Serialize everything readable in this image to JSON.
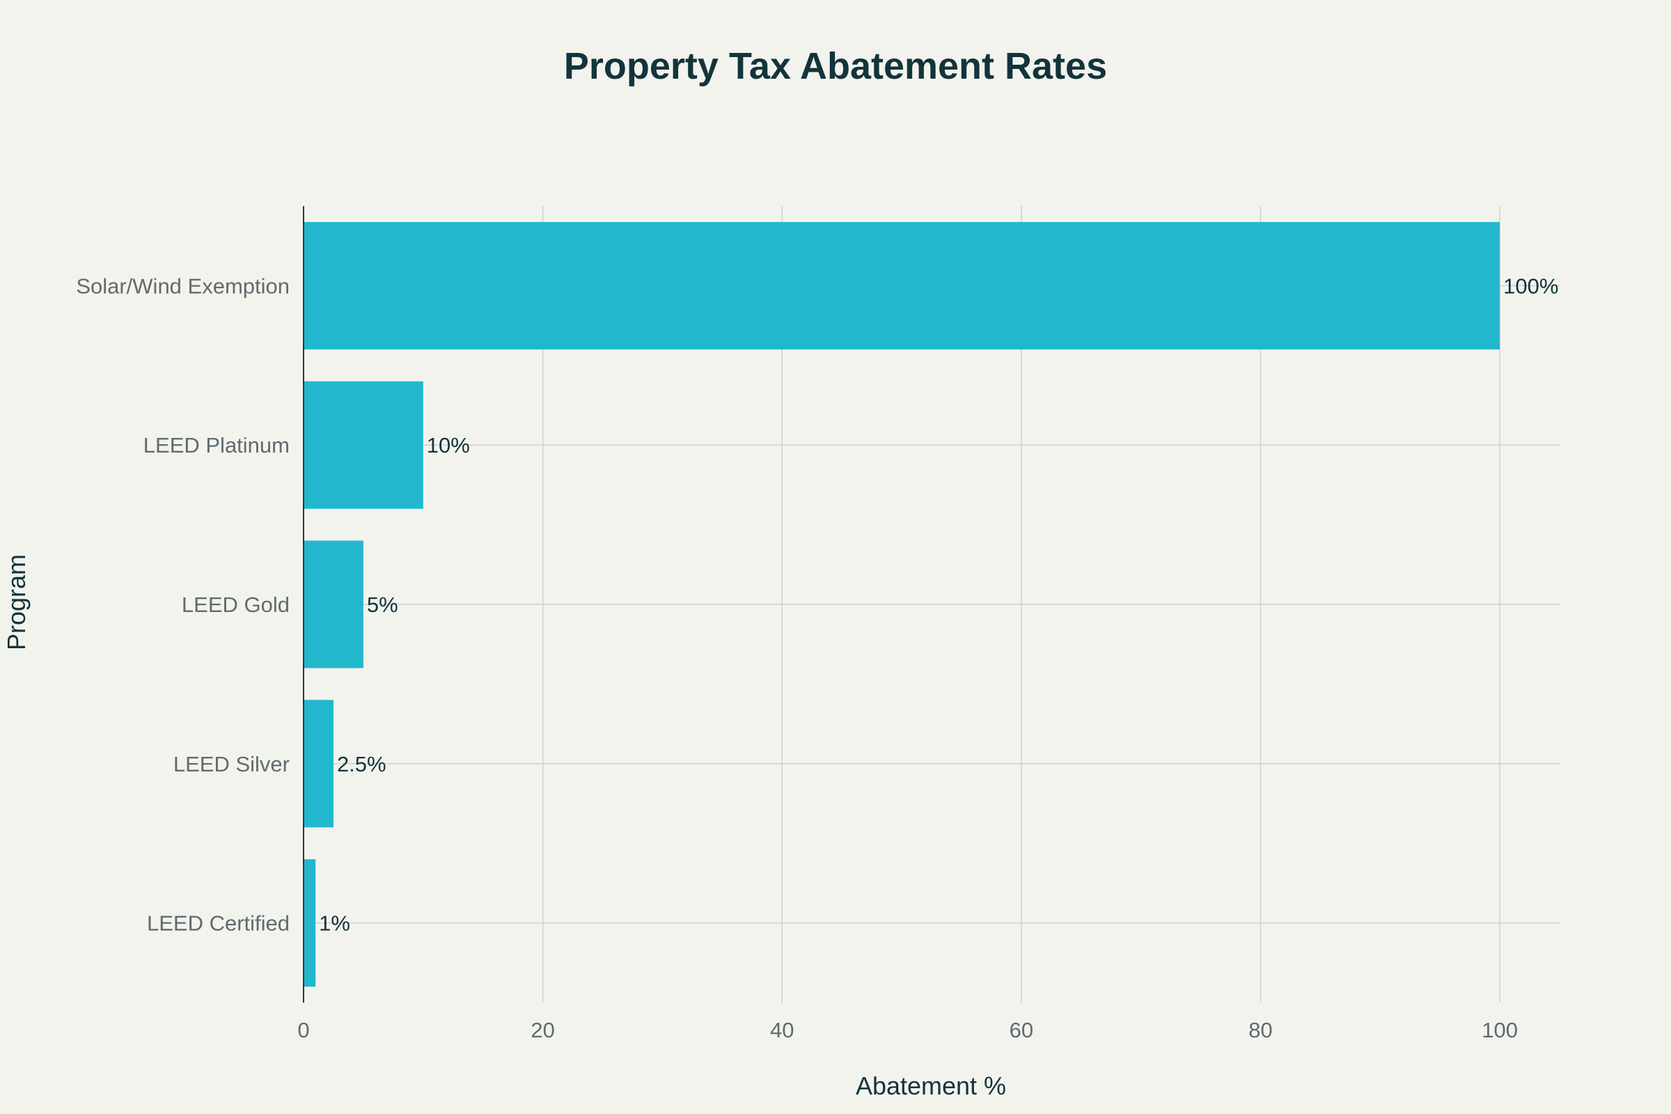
{
  "chart_data": {
    "type": "bar",
    "orientation": "horizontal",
    "title": "Property Tax Abatement Rates",
    "xlabel": "Abatement %",
    "ylabel": "Program",
    "categories": [
      "Solar/Wind Exemption",
      "LEED Platinum",
      "LEED Gold",
      "LEED Silver",
      "LEED Certified"
    ],
    "values": [
      100,
      10,
      5,
      2.5,
      1
    ],
    "data_labels": [
      "100%",
      "10%",
      "5%",
      "2.5%",
      "1%"
    ],
    "xlim": [
      0,
      105
    ],
    "xticks": [
      0,
      20,
      40,
      60,
      80,
      100
    ],
    "grid": true,
    "legend": "none",
    "colors": {
      "bar": "#21b8cd",
      "background": "#f3f3ee",
      "title": "#13343b",
      "grid": "#cfd1cc"
    }
  }
}
